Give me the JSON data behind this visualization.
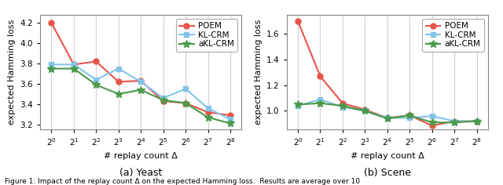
{
  "left": {
    "subtitle": "(a) Yeast",
    "ylabel": "expected Hamming loss",
    "xlabel": "# replay count Δ",
    "poem": [
      4.2,
      3.79,
      3.82,
      3.62,
      3.63,
      3.43,
      3.41,
      3.32,
      3.29
    ],
    "klcrm": [
      3.79,
      3.79,
      3.64,
      3.75,
      3.62,
      3.46,
      3.55,
      3.36,
      3.25
    ],
    "aklcrm": [
      3.75,
      3.75,
      3.59,
      3.5,
      3.54,
      3.44,
      3.41,
      3.27,
      3.21
    ],
    "ylim": [
      3.15,
      4.28
    ],
    "yticks": [
      3.2,
      3.4,
      3.6,
      3.8,
      4.0,
      4.2
    ]
  },
  "right": {
    "subtitle": "(b) Scene",
    "ylabel": "expected Hamming loss",
    "xlabel": "# replay count Δ",
    "poem": [
      1.7,
      1.27,
      1.06,
      1.01,
      0.945,
      0.965,
      0.885,
      0.92,
      0.92
    ],
    "klcrm": [
      1.04,
      1.09,
      1.03,
      1.0,
      0.945,
      0.945,
      0.96,
      0.92,
      0.92
    ],
    "aklcrm": [
      1.05,
      1.06,
      1.04,
      1.0,
      0.94,
      0.965,
      0.91,
      0.91,
      0.92
    ],
    "ylim": [
      0.855,
      1.75
    ],
    "yticks": [
      1.0,
      1.2,
      1.4,
      1.6
    ]
  },
  "poem_color": "#e8534a",
  "klcrm_color": "#82c4e8",
  "aklcrm_color": "#4a9a4a",
  "poem_marker": "o",
  "klcrm_marker": "s",
  "aklcrm_marker": "*",
  "linewidth": 1.5,
  "markersize_circle": 5,
  "markersize_square": 5,
  "markersize_star": 7,
  "legend_labels": [
    "POEM",
    "KL-CRM",
    "aKL-CRM"
  ],
  "x_exp": [
    0,
    1,
    2,
    3,
    4,
    5,
    6,
    7,
    8
  ],
  "figcaption": "Figure 1: Impact of the replay count Δ on the expected Hamming loss.  Results are average over 10"
}
